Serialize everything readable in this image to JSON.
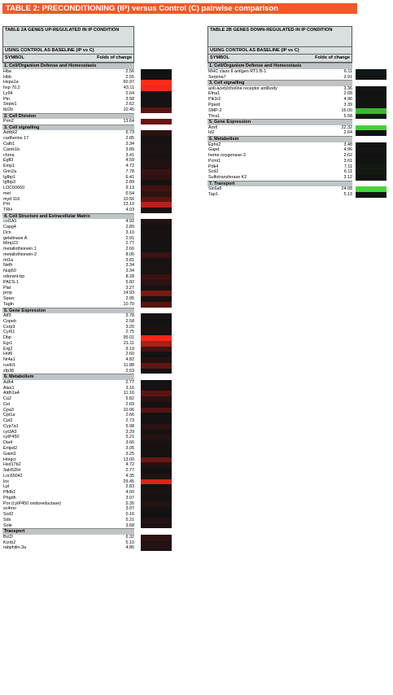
{
  "title": "TABLE 2: PRECONDITIONING (IP) versus Control (C) pairwise comparison",
  "table_a": {
    "title": "TABLE 2A GENES UP-REGULATED IN IP CONDITION",
    "baseline": "USING CONTROL AS BASELINE (IP vs C)",
    "col_symbol": "SYMBOL",
    "col_fold": "Folds of change",
    "sections": [
      {
        "name": "1. Cell/Organism Defense and Homeostasis",
        "rows": [
          {
            "symbol": "Hba",
            "fold": "2.56",
            "color": "#121212"
          },
          {
            "symbol": "Hbb",
            "fold": "2.55",
            "color": "#121212"
          },
          {
            "symbol": "Hspa1a",
            "fold": "60.97",
            "color": "#ff2a18"
          },
          {
            "symbol": "hsp 70.2",
            "fold": "43.11",
            "color": "#f02a1c"
          },
          {
            "symbol": "Ly94",
            "fold": "2.64",
            "color": "#141212"
          },
          {
            "symbol": "Ptn",
            "fold": "3.58",
            "color": "#1a1212"
          },
          {
            "symbol": "Sepw1",
            "fold": "2.62",
            "color": "#141212"
          },
          {
            "symbol": "tb/2b",
            "fold": "10.45",
            "color": "#5a1410"
          }
        ]
      },
      {
        "name": "2. Cell Division",
        "rows": [
          {
            "symbol": "Prm2",
            "fold": "13.64",
            "color": "#6a1612"
          }
        ]
      },
      {
        "name": "3. Cell signalling",
        "rows": [
          {
            "symbol": "Adrbk2",
            "fold": "6.73",
            "color": "#2e1212"
          },
          {
            "symbol": "cadherine 17",
            "fold": "2.85",
            "color": "#161212"
          },
          {
            "symbol": "Calb1",
            "fold": "3.34",
            "color": "#181212"
          },
          {
            "symbol": "Camk1b",
            "fold": "3.89",
            "color": "#1c1212"
          },
          {
            "symbol": "chrna",
            "fold": "3.41",
            "color": "#181212"
          },
          {
            "symbol": "Egfl3",
            "fold": "4.59",
            "color": "#201212"
          },
          {
            "symbol": "Emp1",
            "fold": "4.72",
            "color": "#221212"
          },
          {
            "symbol": "Grin2a",
            "fold": "7.78",
            "color": "#381212"
          },
          {
            "symbol": "Igfbp1",
            "fold": "6.41",
            "color": "#2e1212"
          },
          {
            "symbol": "Igfbp3",
            "fold": "2.89",
            "color": "#161212"
          },
          {
            "symbol": "LOC60660",
            "fold": "9.13",
            "color": "#441212"
          },
          {
            "symbol": "met",
            "fold": "6.54",
            "color": "#2e1212"
          },
          {
            "symbol": "myd 116",
            "fold": "10.56",
            "color": "#5a1410"
          },
          {
            "symbol": "Prlr",
            "fold": "23.10",
            "color": "#b8201a"
          },
          {
            "symbol": "TRH",
            "fold": "4.03",
            "color": "#1c1212"
          }
        ]
      },
      {
        "name": "4. Cell Structure and Extracellular Matrix",
        "rows": [
          {
            "symbol": "col1A1",
            "fold": "4.92",
            "color": "#221212"
          },
          {
            "symbol": "Capg4",
            "fold": "2.89",
            "color": "#161212"
          },
          {
            "symbol": "Dcn",
            "fold": "3.10",
            "color": "#181212"
          },
          {
            "symbol": "gelatinase A",
            "fold": "2.91",
            "color": "#161212"
          },
          {
            "symbol": "Mmp23",
            "fold": "2.77",
            "color": "#141212"
          },
          {
            "symbol": "metallothionein 1",
            "fold": "2.66",
            "color": "#141212"
          },
          {
            "symbol": "metallothionein-2",
            "fold": "8.06",
            "color": "#3a1212"
          },
          {
            "symbol": "mt1a",
            "fold": "3.81",
            "color": "#1a1212"
          },
          {
            "symbol": "Nefh",
            "fold": "3.34",
            "color": "#181212"
          },
          {
            "symbol": "Nup50",
            "fold": "3.34",
            "color": "#181212"
          },
          {
            "symbol": "odorant-bp",
            "fold": "8.28",
            "color": "#3c1212"
          },
          {
            "symbol": "PACS-1",
            "fold": "5.82",
            "color": "#2a1212"
          },
          {
            "symbol": "Plat",
            "fold": "3.27",
            "color": "#181212"
          },
          {
            "symbol": "prnp",
            "fold": "14.93",
            "color": "#7a1814"
          },
          {
            "symbol": "Sparc",
            "fold": "2.95",
            "color": "#161212"
          },
          {
            "symbol": "Tagln",
            "fold": "10.70",
            "color": "#5a1410"
          }
        ]
      },
      {
        "name": "5. Gene Expression",
        "rows": [
          {
            "symbol": "Atf3",
            "fold": "3.78",
            "color": "#1a1212"
          },
          {
            "symbol": "Copeb",
            "fold": "2.58",
            "color": "#121212"
          },
          {
            "symbol": "Csrp3",
            "fold": "3.20",
            "color": "#181212"
          },
          {
            "symbol": "Cyr61",
            "fold": "2.75",
            "color": "#141212"
          },
          {
            "symbol": "Dbp",
            "fold": "95.01",
            "color": "#ff2418"
          },
          {
            "symbol": "Egr1",
            "fold": "21.11",
            "color": "#a81e18"
          },
          {
            "symbol": "Erg2",
            "fold": "9.19",
            "color": "#441212"
          },
          {
            "symbol": "Hnf6",
            "fold": "2.60",
            "color": "#141212"
          },
          {
            "symbol": "Nr4a1",
            "fold": "4.82",
            "color": "#221212"
          },
          {
            "symbol": "ruvbl1",
            "fold": "11.88",
            "color": "#621412"
          },
          {
            "symbol": "zfp36",
            "fold": "2.53",
            "color": "#121212"
          }
        ]
      },
      {
        "name": "6. Metabolism",
        "rows": [
          {
            "symbol": "Adh4",
            "fold": "2.77",
            "color": "#141212"
          },
          {
            "symbol": "Alas1",
            "fold": "3.16",
            "color": "#181212"
          },
          {
            "symbol": "Aldh1a4",
            "fold": "11.16",
            "color": "#5e1412"
          },
          {
            "symbol": "Ca2",
            "fold": "5.82",
            "color": "#2a1212"
          },
          {
            "symbol": "Cel",
            "fold": "2.69",
            "color": "#141212"
          },
          {
            "symbol": "Cpa3",
            "fold": "10.06",
            "color": "#521412"
          },
          {
            "symbol": "Cpt1a",
            "fold": "2.66",
            "color": "#141212"
          },
          {
            "symbol": "Cpt2",
            "fold": "2.73",
            "color": "#141212"
          },
          {
            "symbol": "Cyp7a1",
            "fold": "5.98",
            "color": "#2a1212"
          },
          {
            "symbol": "cyt3A3",
            "fold": "3.29",
            "color": "#181212"
          },
          {
            "symbol": "cytP450",
            "fold": "5.21",
            "color": "#241212"
          },
          {
            "symbol": "Dia4",
            "fold": "3.66",
            "color": "#1a1212"
          },
          {
            "symbol": "Entpd2",
            "fold": "3.05",
            "color": "#161212"
          },
          {
            "symbol": "Gaint1",
            "fold": "3.25",
            "color": "#181212"
          },
          {
            "symbol": "Hmgcr",
            "fold": "13.00",
            "color": "#6a1612"
          },
          {
            "symbol": "Hsd17b2",
            "fold": "4.72",
            "color": "#221212"
          },
          {
            "symbol": "3aHSDH",
            "fold": "2.77",
            "color": "#141212"
          },
          {
            "symbol": "Loc65042",
            "fold": "4.35",
            "color": "#1e1212"
          },
          {
            "symbol": "lox",
            "fold": "29.45",
            "color": "#d8241a"
          },
          {
            "symbol": "Lpl",
            "fold": "2.83",
            "color": "#161212"
          },
          {
            "symbol": "Pfkfb1",
            "fold": "4.00",
            "color": "#1c1212"
          },
          {
            "symbol": "Phgdh",
            "fold": "3.07",
            "color": "#161212"
          },
          {
            "symbol": "Por (cytP450 oxidoreductase)",
            "fold": "5.35",
            "color": "#261212"
          },
          {
            "symbol": "sc4mo",
            "fold": "3.07",
            "color": "#161212"
          },
          {
            "symbol": "Scd2",
            "fold": "0.16",
            "color": "#121212"
          },
          {
            "symbol": "Sds",
            "fold": "5.21",
            "color": "#241212"
          },
          {
            "symbol": "Sole",
            "fold": "3.68",
            "color": "#1a1212"
          }
        ]
      },
      {
        "name": "Transport",
        "rows": [
          {
            "symbol": "Bcl2l",
            "fold": "6.32",
            "color": "#2e1212"
          },
          {
            "symbol": "Kcnb2",
            "fold": "5.10",
            "color": "#241212"
          },
          {
            "symbol": "rabphilin-3a",
            "fold": "4.86",
            "color": "#221212"
          }
        ]
      }
    ]
  },
  "table_b": {
    "title": "TABLE 2B GENES DOWN-REGULATED IN IP CONDITION",
    "baseline": "USING CONTROL AS BASELINE (IP vs C)",
    "col_symbol": "SYMBOL",
    "col_fold": "Folds of change",
    "sections": [
      {
        "name": "1. Cell/Organism Defense and Homeostasis",
        "rows": [
          {
            "symbol": "MHC class II antigen RT1 B-1",
            "fold": "6.11",
            "color": "#12181a"
          },
          {
            "symbol": "Serpina7",
            "fold": "2.91",
            "color": "#121212"
          }
        ]
      },
      {
        "name": "3. Cell signalling",
        "rows": [
          {
            "symbol": "anti-acetylcholine receptor antibody",
            "fold": "3.36",
            "color": "#121412"
          },
          {
            "symbol": "Efna1",
            "fold": "2.68",
            "color": "#121212"
          },
          {
            "symbol": "Pik3r2",
            "fold": "4.96",
            "color": "#121612"
          },
          {
            "symbol": "Ppard",
            "fold": "3.39",
            "color": "#121412"
          },
          {
            "symbol": "SMP-2",
            "fold": "16.00",
            "color": "#3ab832"
          },
          {
            "symbol": "Thra1",
            "fold": "5.58",
            "color": "#121812"
          }
        ]
      },
      {
        "name": "5. Gene Expression",
        "rows": [
          {
            "symbol": "Arntl",
            "fold": "22.32",
            "color": "#44d03a"
          },
          {
            "symbol": "Id2",
            "fold": "2.64",
            "color": "#121212"
          }
        ]
      },
      {
        "name": "6. Metabolism",
        "rows": [
          {
            "symbol": "Ephx2",
            "fold": "3.48",
            "color": "#121412"
          },
          {
            "symbol": "Gapd",
            "fold": "4.96",
            "color": "#121612"
          },
          {
            "symbol": "heme oxygenase-3",
            "fold": "2.62",
            "color": "#121212"
          },
          {
            "symbol": "Pcmt1",
            "fold": "3.61",
            "color": "#121412"
          },
          {
            "symbol": "Pdk4",
            "fold": "7.11",
            "color": "#121c12"
          },
          {
            "symbol": "Scd2",
            "fold": "6.11",
            "color": "#121a12"
          },
          {
            "symbol": "Sulfotransferase K2",
            "fold": "3.12",
            "color": "#121412"
          }
        ]
      },
      {
        "name": "7. Transport",
        "rows": [
          {
            "symbol": "Slc6a6",
            "fold": "24.08",
            "color": "#48d43c"
          },
          {
            "symbol": "Tap1",
            "fold": "5.13",
            "color": "#121612"
          }
        ]
      }
    ]
  }
}
